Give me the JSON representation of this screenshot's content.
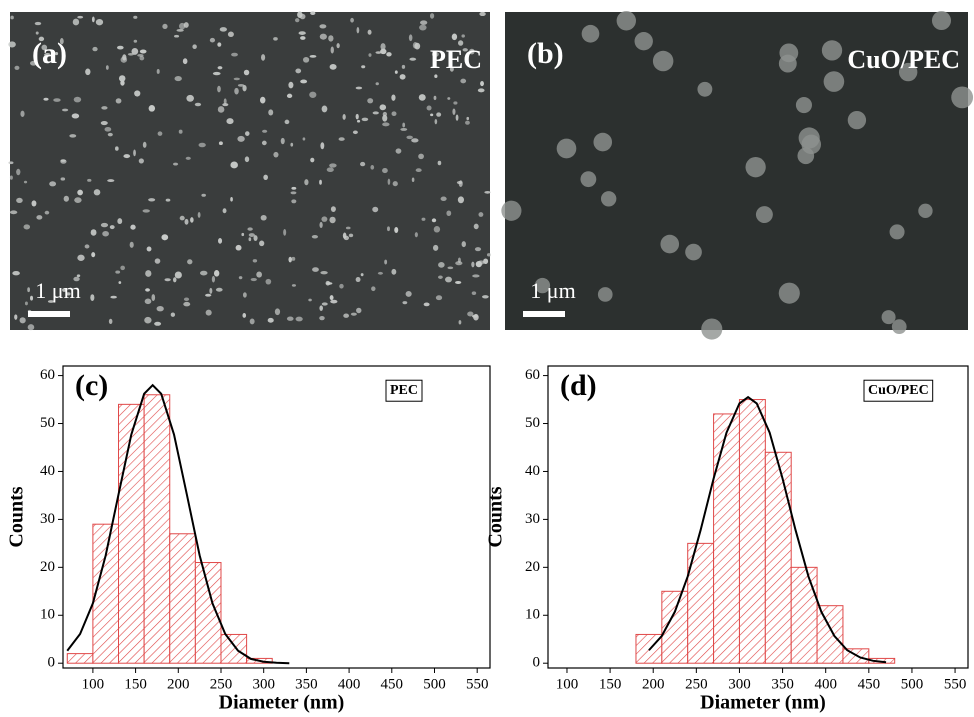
{
  "images": [
    {
      "label": "(a)",
      "name": "PEC",
      "scale_bar": "1 μm"
    },
    {
      "label": "(b)",
      "name": "CuO/PEC",
      "scale_bar": "1 μm"
    }
  ],
  "chart_data": [
    {
      "type": "histogram",
      "label": "(c)",
      "x_label": "Diameter (nm)",
      "y_label": "Counts",
      "bins": [
        70,
        100,
        130,
        160,
        190,
        220,
        250,
        280,
        310
      ],
      "series": [
        {
          "name": "PEC",
          "color": "#e04848",
          "values": [
            2,
            29,
            54,
            56,
            27,
            21,
            6,
            1
          ]
        }
      ],
      "fit": {
        "color": "#000000",
        "x": [
          70,
          85,
          100,
          115,
          130,
          145,
          160,
          170,
          180,
          195,
          210,
          225,
          240,
          255,
          270,
          285,
          300,
          315,
          330
        ],
        "values": [
          2.6,
          6.1,
          12.5,
          22.5,
          35.2,
          47.7,
          56.2,
          58,
          56.2,
          47.7,
          35.2,
          22.5,
          12.5,
          6.1,
          2.6,
          0.9,
          0.3,
          0.1,
          0
        ]
      },
      "xlim": [
        65,
        565
      ],
      "ylim": [
        -1,
        62
      ],
      "xticks": [
        100,
        150,
        200,
        250,
        300,
        350,
        400,
        450,
        500,
        550
      ],
      "yticks": [
        0,
        10,
        20,
        30,
        40,
        50,
        60
      ]
    },
    {
      "type": "histogram",
      "label": "(d)",
      "x_label": "Diameter (nm)",
      "y_label": "Counts",
      "bins": [
        180,
        210,
        240,
        270,
        300,
        330,
        360,
        390,
        420,
        450,
        480
      ],
      "series": [
        {
          "name": "CuO/PEC",
          "color": "#e04848",
          "values": [
            6,
            15,
            25,
            52,
            55,
            44,
            20,
            12,
            3,
            1
          ]
        }
      ],
      "fit": {
        "color": "#000000",
        "x": [
          195,
          210,
          225,
          240,
          255,
          270,
          285,
          300,
          310,
          320,
          335,
          350,
          365,
          380,
          395,
          410,
          425,
          440,
          455,
          470
        ],
        "values": [
          2.7,
          5.7,
          10.7,
          18.1,
          27.8,
          38.5,
          48.1,
          54.2,
          55.5,
          54.2,
          48.1,
          38.5,
          27.8,
          18.1,
          10.7,
          5.7,
          2.7,
          1.2,
          0.5,
          0.2
        ]
      },
      "xlim": [
        78,
        565
      ],
      "ylim": [
        -1,
        62
      ],
      "xticks": [
        100,
        150,
        200,
        250,
        300,
        350,
        400,
        450,
        500,
        550
      ],
      "yticks": [
        0,
        10,
        20,
        30,
        40,
        50,
        60
      ]
    }
  ]
}
